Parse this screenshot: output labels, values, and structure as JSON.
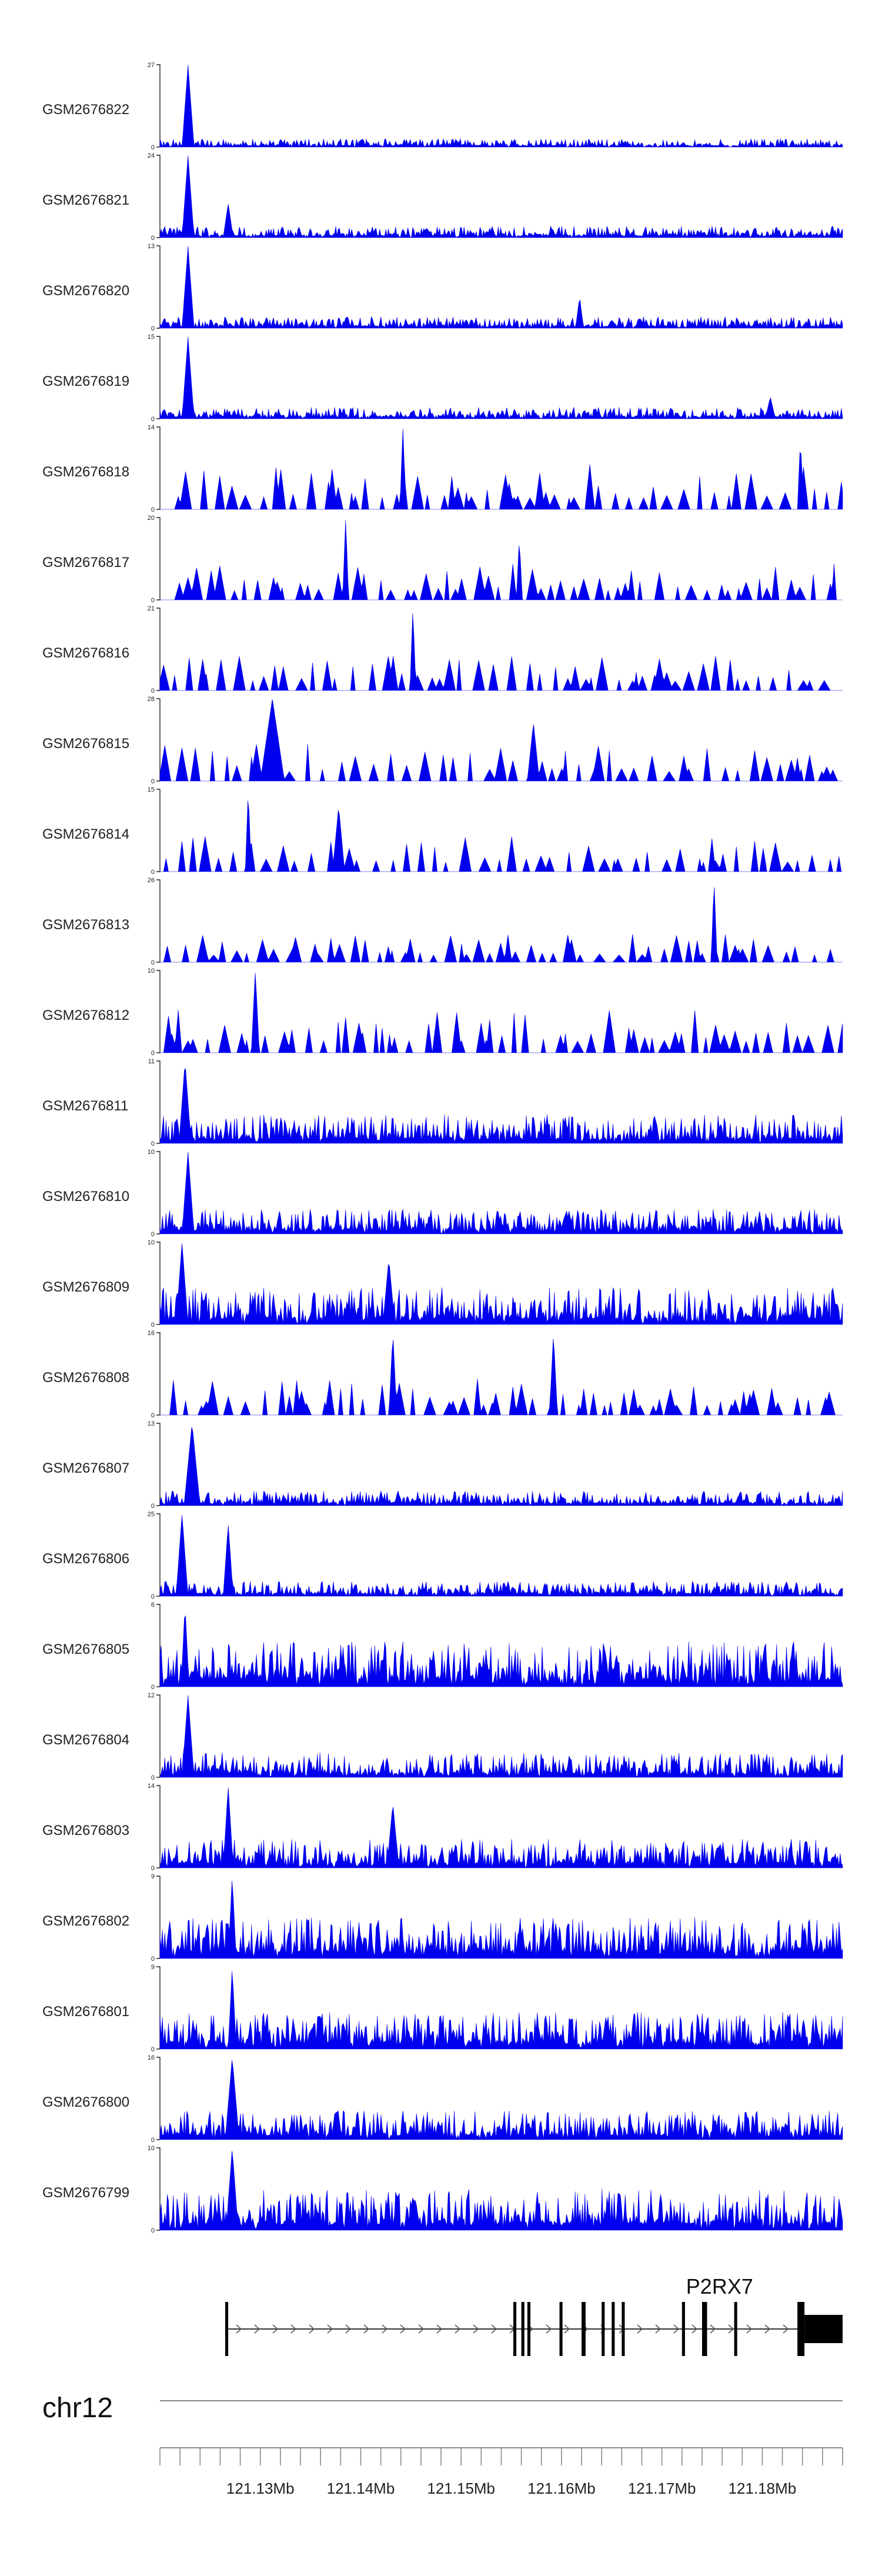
{
  "chart_data": {
    "type": "area",
    "chromosome": "chr12",
    "x_range_mb": [
      121.12,
      121.188
    ],
    "coordinate_labels": [
      "121.13Mb",
      "121.14Mb",
      "121.15Mb",
      "121.16Mb",
      "121.17Mb",
      "121.18Mb"
    ],
    "coordinate_values_mb": [
      121.13,
      121.14,
      121.15,
      121.16,
      121.17,
      121.18
    ],
    "minor_tick_step_mb": 0.002,
    "series_color": "#0000ee",
    "tracks": [
      {
        "name": "GSM2676822",
        "ymax": 27,
        "ymin": 0,
        "peaks": [
          [
            121.1228,
            27,
            0.0006
          ]
        ],
        "style": "dense",
        "level": 0.1
      },
      {
        "name": "GSM2676821",
        "ymax": 24,
        "ymin": 0,
        "peaks": [
          [
            121.1228,
            24,
            0.0006
          ],
          [
            121.1268,
            10,
            0.0005
          ]
        ],
        "style": "dense",
        "level": 0.14
      },
      {
        "name": "GSM2676820",
        "ymax": 13,
        "ymin": 0,
        "peaks": [
          [
            121.1228,
            13,
            0.0006
          ],
          [
            121.1618,
            5,
            0.0004
          ]
        ],
        "style": "dense",
        "level": 0.14
      },
      {
        "name": "GSM2676819",
        "ymax": 15,
        "ymin": 0,
        "peaks": [
          [
            121.1228,
            15,
            0.0006
          ],
          [
            121.1808,
            4,
            0.0005
          ]
        ],
        "style": "dense",
        "level": 0.14
      },
      {
        "name": "GSM2676818",
        "ymax": 14,
        "ymin": 0,
        "peaks": [
          [
            121.1442,
            14,
            0.0003
          ],
          [
            121.1838,
            12,
            0.0003
          ]
        ],
        "style": "sparse",
        "level": 0.55
      },
      {
        "name": "GSM2676817",
        "ymax": 20,
        "ymin": 0,
        "peaks": [
          [
            121.1385,
            20,
            0.0003
          ],
          [
            121.1558,
            15,
            0.0003
          ]
        ],
        "style": "sparse",
        "level": 0.45
      },
      {
        "name": "GSM2676816",
        "ymax": 21,
        "ymin": 0,
        "peaks": [
          [
            121.1452,
            21,
            0.0003
          ]
        ],
        "style": "sparse",
        "level": 0.45
      },
      {
        "name": "GSM2676815",
        "ymax": 28,
        "ymin": 0,
        "peaks": [
          [
            121.1312,
            28,
            0.0012
          ],
          [
            121.1572,
            20,
            0.0006
          ]
        ],
        "style": "sparse",
        "level": 0.45
      },
      {
        "name": "GSM2676814",
        "ymax": 15,
        "ymin": 0,
        "peaks": [
          [
            121.1288,
            15,
            0.0003
          ],
          [
            121.1378,
            12,
            0.0006
          ]
        ],
        "style": "sparse",
        "level": 0.45
      },
      {
        "name": "GSM2676813",
        "ymax": 26,
        "ymin": 0,
        "peaks": [
          [
            121.1752,
            26,
            0.0003
          ]
        ],
        "style": "sparse",
        "level": 0.35
      },
      {
        "name": "GSM2676812",
        "ymax": 10,
        "ymin": 0,
        "peaks": [
          [
            121.1295,
            10,
            0.0004
          ]
        ],
        "style": "sparse",
        "level": 0.55
      },
      {
        "name": "GSM2676811",
        "ymax": 11,
        "ymin": 0,
        "peaks": [
          [
            121.1225,
            11,
            0.0006
          ]
        ],
        "style": "dense",
        "level": 0.35
      },
      {
        "name": "GSM2676810",
        "ymax": 10,
        "ymin": 0,
        "peaks": [
          [
            121.1228,
            10,
            0.0006
          ]
        ],
        "style": "dense",
        "level": 0.3
      },
      {
        "name": "GSM2676809",
        "ymax": 10,
        "ymin": 0,
        "peaks": [
          [
            121.1222,
            10,
            0.0006
          ],
          [
            121.1428,
            8,
            0.0006
          ]
        ],
        "style": "dense",
        "level": 0.45
      },
      {
        "name": "GSM2676808",
        "ymax": 16,
        "ymin": 0,
        "peaks": [
          [
            121.1432,
            16,
            0.0004
          ],
          [
            121.1592,
            16,
            0.0004
          ]
        ],
        "style": "sparse",
        "level": 0.45
      },
      {
        "name": "GSM2676807",
        "ymax": 13,
        "ymin": 0,
        "peaks": [
          [
            121.1232,
            13,
            0.0008
          ]
        ],
        "style": "dense",
        "level": 0.18
      },
      {
        "name": "GSM2676806",
        "ymax": 25,
        "ymin": 0,
        "peaks": [
          [
            121.1222,
            25,
            0.0006
          ],
          [
            121.1268,
            22,
            0.0005
          ]
        ],
        "style": "dense",
        "level": 0.18
      },
      {
        "name": "GSM2676805",
        "ymax": 6,
        "ymin": 0,
        "peaks": [
          [
            121.1225,
            6,
            0.0004
          ]
        ],
        "style": "dense",
        "level": 0.55
      },
      {
        "name": "GSM2676804",
        "ymax": 12,
        "ymin": 0,
        "peaks": [
          [
            121.1228,
            12,
            0.0006
          ]
        ],
        "style": "dense",
        "level": 0.3
      },
      {
        "name": "GSM2676803",
        "ymax": 14,
        "ymin": 0,
        "peaks": [
          [
            121.1268,
            14,
            0.0005
          ],
          [
            121.1432,
            11,
            0.0006
          ]
        ],
        "style": "dense",
        "level": 0.35
      },
      {
        "name": "GSM2676802",
        "ymax": 9,
        "ymin": 0,
        "peaks": [
          [
            121.1272,
            9,
            0.0004
          ]
        ],
        "style": "dense",
        "level": 0.5
      },
      {
        "name": "GSM2676801",
        "ymax": 9,
        "ymin": 0,
        "peaks": [
          [
            121.1272,
            9,
            0.0004
          ]
        ],
        "style": "dense",
        "level": 0.45
      },
      {
        "name": "GSM2676800",
        "ymax": 16,
        "ymin": 0,
        "peaks": [
          [
            121.1272,
            16,
            0.0007
          ]
        ],
        "style": "dense",
        "level": 0.35
      },
      {
        "name": "GSM2676799",
        "ymax": 10,
        "ymin": 0,
        "peaks": [
          [
            121.1272,
            10,
            0.0006
          ]
        ],
        "style": "dense",
        "level": 0.5
      }
    ],
    "gene": {
      "name": "P2RX7",
      "strand": "+",
      "start_mb": 121.1265,
      "end_mb": 121.188,
      "exons": [
        [
          121.1265,
          121.1268
        ],
        [
          121.1552,
          121.1555
        ],
        [
          121.156,
          121.1563
        ],
        [
          121.1566,
          121.1569
        ],
        [
          121.1598,
          121.1601
        ],
        [
          121.162,
          121.1624
        ],
        [
          121.164,
          121.1643
        ],
        [
          121.165,
          121.1653
        ],
        [
          121.166,
          121.1663
        ],
        [
          121.172,
          121.1723
        ],
        [
          121.174,
          121.1745
        ],
        [
          121.1772,
          121.1775
        ],
        [
          121.1835,
          121.1842
        ],
        [
          121.1842,
          121.188
        ]
      ]
    }
  }
}
